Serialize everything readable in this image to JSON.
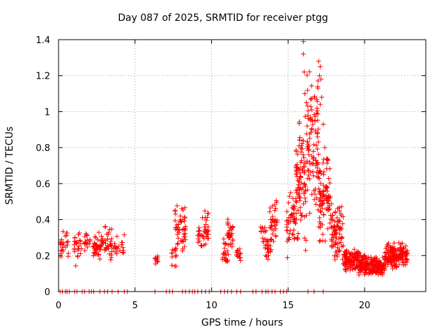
{
  "chart_data": {
    "type": "scatter",
    "title": "Day 087 of 2025, SRMTID for receiver ptgg",
    "xlabel": "GPS time / hours",
    "ylabel": "SRMTID / TECUs",
    "xlim": [
      0,
      24
    ],
    "ylim": [
      0,
      1.4
    ],
    "xticks": [
      "0",
      "5",
      "10",
      "15",
      "20"
    ],
    "yticks": [
      "0",
      "0.2",
      "0.4",
      "0.6",
      "0.8",
      "1",
      "1.2",
      "1.4"
    ],
    "grid": true,
    "marker": "+",
    "color": "#ff0000",
    "series": [
      {
        "name": "SRMTID",
        "clusters": [
          {
            "x0": 0.1,
            "x1": 0.7,
            "ymin": 0.18,
            "ymax": 0.34,
            "n": 25
          },
          {
            "x0": 1.0,
            "x1": 1.5,
            "ymin": 0.14,
            "ymax": 0.36,
            "n": 25
          },
          {
            "x0": 1.7,
            "x1": 2.1,
            "ymin": 0.22,
            "ymax": 0.34,
            "n": 18
          },
          {
            "x0": 2.2,
            "x1": 3.0,
            "ymin": 0.17,
            "ymax": 0.34,
            "n": 45
          },
          {
            "x0": 3.0,
            "x1": 3.5,
            "ymin": 0.13,
            "ymax": 0.37,
            "n": 30
          },
          {
            "x0": 3.6,
            "x1": 4.3,
            "ymin": 0.16,
            "ymax": 0.32,
            "n": 22
          },
          {
            "x0": 6.3,
            "x1": 6.5,
            "ymin": 0.14,
            "ymax": 0.22,
            "n": 10
          },
          {
            "x0": 7.4,
            "x1": 7.7,
            "ymin": 0.12,
            "ymax": 0.26,
            "n": 14
          },
          {
            "x0": 7.6,
            "x1": 8.3,
            "ymin": 0.2,
            "ymax": 0.5,
            "n": 50
          },
          {
            "x0": 9.1,
            "x1": 9.4,
            "ymin": 0.2,
            "ymax": 0.4,
            "n": 15
          },
          {
            "x0": 9.4,
            "x1": 9.8,
            "ymin": 0.17,
            "ymax": 0.47,
            "n": 30
          },
          {
            "x0": 10.7,
            "x1": 11.1,
            "ymin": 0.14,
            "ymax": 0.3,
            "n": 22
          },
          {
            "x0": 11.0,
            "x1": 11.4,
            "ymin": 0.22,
            "ymax": 0.42,
            "n": 35
          },
          {
            "x0": 11.6,
            "x1": 11.9,
            "ymin": 0.15,
            "ymax": 0.26,
            "n": 15
          },
          {
            "x0": 13.2,
            "x1": 13.5,
            "ymin": 0.25,
            "ymax": 0.4,
            "n": 12
          },
          {
            "x0": 13.5,
            "x1": 13.9,
            "ymin": 0.08,
            "ymax": 0.35,
            "n": 25
          },
          {
            "x0": 13.8,
            "x1": 14.3,
            "ymin": 0.22,
            "ymax": 0.52,
            "n": 35
          },
          {
            "x0": 14.9,
            "x1": 15.5,
            "ymin": 0.17,
            "ymax": 0.62,
            "n": 45
          },
          {
            "x0": 15.5,
            "x1": 16.2,
            "ymin": 0.22,
            "ymax": 1.0,
            "n": 95
          },
          {
            "x0": 16.2,
            "x1": 17.0,
            "ymin": 0.4,
            "ymax": 1.26,
            "n": 95
          },
          {
            "x0": 17.0,
            "x1": 17.8,
            "ymin": 0.25,
            "ymax": 0.78,
            "n": 90
          },
          {
            "x0": 17.8,
            "x1": 18.6,
            "ymin": 0.15,
            "ymax": 0.52,
            "n": 80
          },
          {
            "x0": 18.6,
            "x1": 19.6,
            "ymin": 0.1,
            "ymax": 0.25,
            "n": 110
          },
          {
            "x0": 19.6,
            "x1": 20.5,
            "ymin": 0.08,
            "ymax": 0.22,
            "n": 110
          },
          {
            "x0": 20.5,
            "x1": 21.3,
            "ymin": 0.08,
            "ymax": 0.2,
            "n": 90
          },
          {
            "x0": 21.3,
            "x1": 22.2,
            "ymin": 0.12,
            "ymax": 0.28,
            "n": 110
          },
          {
            "x0": 22.2,
            "x1": 22.8,
            "ymin": 0.14,
            "ymax": 0.28,
            "n": 60
          }
        ],
        "points": [
          {
            "x": 16.0,
            "y": 1.39
          },
          {
            "x": 16.0,
            "y": 1.32
          },
          {
            "x": 16.05,
            "y": 1.22
          },
          {
            "x": 16.1,
            "y": 1.1
          },
          {
            "x": 16.2,
            "y": 1.05
          },
          {
            "x": 16.3,
            "y": 0.98
          },
          {
            "x": 17.0,
            "y": 1.28
          },
          {
            "x": 17.1,
            "y": 1.25
          },
          {
            "x": 17.05,
            "y": 1.2
          },
          {
            "x": 17.15,
            "y": 1.18
          },
          {
            "x": 16.95,
            "y": 1.13
          },
          {
            "x": 17.2,
            "y": 1.08
          },
          {
            "x": 17.1,
            "y": 1.04
          },
          {
            "x": 16.25,
            "y": 0.92
          },
          {
            "x": 16.9,
            "y": 0.88
          },
          {
            "x": 17.3,
            "y": 0.93
          },
          {
            "x": 17.4,
            "y": 0.8
          }
        ],
        "zero_markers_x": [
          0.1,
          0.25,
          0.45,
          0.55,
          0.7,
          1.05,
          1.2,
          1.55,
          1.7,
          2.0,
          2.15,
          2.3,
          2.7,
          3.0,
          3.2,
          3.5,
          3.9,
          4.3,
          4.5,
          6.3,
          7.05,
          7.25,
          7.45,
          8.1,
          8.3,
          8.55,
          8.75,
          8.9,
          9.1,
          9.35,
          9.6,
          9.85,
          10.6,
          10.85,
          11.05,
          11.3,
          11.65,
          11.9,
          12.7,
          12.9,
          13.3,
          13.55,
          13.7,
          13.95,
          14.15,
          14.5,
          14.7,
          14.9,
          16.3,
          16.7,
          17.3
        ]
      }
    ]
  }
}
